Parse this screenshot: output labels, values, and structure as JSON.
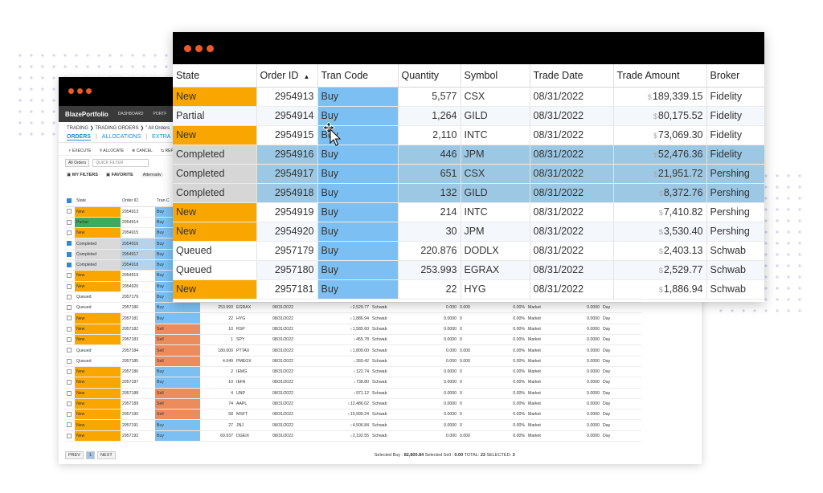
{
  "back_window": {
    "brand": "BlazePortfolio",
    "nav": [
      "DASHBOARD",
      "PORTF"
    ],
    "breadcrumb": "TRADING ❯ TRADING ORDERS ❯ \" All Orders",
    "subtabs": [
      "ORDERS",
      "ALLOCATIONS",
      "EXTRA"
    ],
    "actions": [
      "⚡ EXECUTE",
      "⚲ ALLOCATE",
      "⊗ CANCEL",
      "⇆ REP"
    ],
    "orders_filter": "All Orders",
    "quick_filter_placeholder": "QUICK FILTER",
    "my_filters": "MY FILTERS",
    "favorite": "FAVORITE",
    "alternative": "Alternativ",
    "columns": [
      "State",
      "Order ID",
      "Tran C"
    ],
    "rows": [
      {
        "state": "New",
        "id": "2954913",
        "code": "Buy",
        "checked": false
      },
      {
        "state": "Partial",
        "id": "2954914",
        "code": "Buy",
        "checked": false
      },
      {
        "state": "New",
        "id": "2954915",
        "code": "Buy",
        "checked": false
      },
      {
        "state": "Completed",
        "id": "2954916",
        "code": "Buy",
        "checked": true
      },
      {
        "state": "Completed",
        "id": "2954917",
        "code": "Buy",
        "checked": true
      },
      {
        "state": "Completed",
        "id": "2954918",
        "code": "Buy",
        "checked": true
      },
      {
        "state": "New",
        "id": "2954919",
        "code": "Buy",
        "checked": false
      },
      {
        "state": "New",
        "id": "2954920",
        "code": "Buy",
        "checked": false
      },
      {
        "state": "Queued",
        "id": "2957179",
        "code": "Buy",
        "checked": false
      },
      {
        "state": "Queued",
        "id": "2957180",
        "code": "Buy",
        "qty": "253.993",
        "sym": "EGRAX",
        "date": "08/31/2022",
        "amt": "2,529.77",
        "broker": "Schwab",
        "a": "0.000",
        "b": "0.000",
        "p": "0.00",
        "type": "Market",
        "lim": "0.0000",
        "tif": "Day",
        "checked": false
      },
      {
        "state": "New",
        "id": "2957181",
        "code": "Buy",
        "qty": "22",
        "sym": "HYG",
        "date": "08/31/2022",
        "amt": "1,886.94",
        "broker": "Schwab",
        "a": "0.0000",
        "b": "0",
        "p": "0.00",
        "type": "Market",
        "lim": "0.0000",
        "tif": "Day",
        "checked": false
      },
      {
        "state": "New",
        "id": "2957182",
        "code": "Sell",
        "qty": "10",
        "sym": "RSP",
        "date": "08/31/2022",
        "amt": "1,585.60",
        "broker": "Schwab",
        "a": "0.0000",
        "b": "0",
        "p": "0.00",
        "type": "Market",
        "lim": "0.0000",
        "tif": "Day",
        "checked": false
      },
      {
        "state": "New",
        "id": "2957183",
        "code": "Sell",
        "qty": "1",
        "sym": "SPY",
        "date": "08/31/2022",
        "amt": "455.78",
        "broker": "Schwab",
        "a": "0.0000",
        "b": "0",
        "p": "0.00",
        "type": "Market",
        "lim": "0.0000",
        "tif": "Day",
        "checked": false
      },
      {
        "state": "Queued",
        "id": "2957184",
        "code": "Sell",
        "qty": "180.000",
        "sym": "PTTAX",
        "date": "08/31/2022",
        "amt": "1,809.00",
        "broker": "Schwab",
        "a": "0.000",
        "b": "0.000",
        "p": "0.00",
        "type": "Market",
        "lim": "0.0000",
        "tif": "Day",
        "checked": false
      },
      {
        "state": "Queued",
        "id": "2957185",
        "code": "Sell",
        "qty": "4.049",
        "sym": "PMEGX",
        "date": "08/31/2022",
        "amt": "269.42",
        "broker": "Schwab",
        "a": "0.000",
        "b": "0.000",
        "p": "0.00",
        "type": "Market",
        "lim": "0.0000",
        "tif": "Day",
        "checked": false
      },
      {
        "state": "New",
        "id": "2957186",
        "code": "Buy",
        "qty": "2",
        "sym": "IEMG",
        "date": "08/31/2022",
        "amt": "122.74",
        "broker": "Schwab",
        "a": "0.0000",
        "b": "0",
        "p": "0.00",
        "type": "Market",
        "lim": "0.0000",
        "tif": "Day",
        "checked": false
      },
      {
        "state": "New",
        "id": "2957187",
        "code": "Buy",
        "qty": "10",
        "sym": "IEFA",
        "date": "08/31/2022",
        "amt": "738.80",
        "broker": "Schwab",
        "a": "0.0000",
        "b": "0",
        "p": "0.00",
        "type": "Market",
        "lim": "0.0000",
        "tif": "Day",
        "checked": false
      },
      {
        "state": "New",
        "id": "2957188",
        "code": "Sell",
        "qty": "4",
        "sym": "UNP",
        "date": "08/31/2022",
        "amt": "971.12",
        "broker": "Schwab",
        "a": "0.0000",
        "b": "0",
        "p": "0.00",
        "type": "Market",
        "lim": "0.0000",
        "tif": "Day",
        "checked": false
      },
      {
        "state": "New",
        "id": "2957189",
        "code": "Sell",
        "qty": "74",
        "sym": "AAPL",
        "date": "08/31/2022",
        "amt": "12,486.02",
        "broker": "Schwab",
        "a": "0.0000",
        "b": "0",
        "p": "0.00",
        "type": "Market",
        "lim": "0.0000",
        "tif": "Day",
        "checked": false
      },
      {
        "state": "New",
        "id": "2957190",
        "code": "Sell",
        "qty": "58",
        "sym": "MSFT",
        "date": "08/31/2022",
        "amt": "15,995.24",
        "broker": "Schwab",
        "a": "0.0000",
        "b": "0",
        "p": "0.00",
        "type": "Market",
        "lim": "0.0000",
        "tif": "Day",
        "checked": false
      },
      {
        "state": "New",
        "id": "2957191",
        "code": "Buy",
        "qty": "27",
        "sym": "JNJ",
        "date": "08/31/2022",
        "amt": "4,506.84",
        "broker": "Schwab",
        "a": "0.0000",
        "b": "0",
        "p": "0.00",
        "type": "Market",
        "lim": "0.0000",
        "tif": "Day",
        "checked": false
      },
      {
        "state": "New",
        "id": "2957192",
        "code": "Buy",
        "qty": "69.937",
        "sym": "DGEIX",
        "date": "08/31/2022",
        "amt": "2,192.55",
        "broker": "Schwab",
        "a": "0.000",
        "b": "0.000",
        "p": "0.00",
        "type": "Market",
        "lim": "0.0000",
        "tif": "Day",
        "checked": false
      }
    ],
    "pager": [
      "PREV",
      "1",
      "NEXT"
    ],
    "summary": {
      "selected_buy_label": "Selected Buy :",
      "selected_buy": "82,800.84",
      "selected_sell_label": "Selected Sell :",
      "selected_sell": "0.00",
      "total_label": "TOTAL:",
      "total": "23",
      "selected_label": "SELECTED:",
      "selected": "3"
    }
  },
  "front_window": {
    "columns": [
      "State",
      "Order ID",
      "Tran Code",
      "Quantity",
      "Symbol",
      "Trade Date",
      "Trade Amount",
      "Broker"
    ],
    "currency_symbol": "$",
    "rows": [
      {
        "state": "New",
        "id": "2954913",
        "code": "Buy",
        "qty": "5,577",
        "sym": "CSX",
        "date": "08/31/2022",
        "amt": "189,339.15",
        "broker": "Fidelity",
        "selected": false
      },
      {
        "state": "Partial",
        "id": "2954914",
        "code": "Buy",
        "qty": "1,264",
        "sym": "GILD",
        "date": "08/31/2022",
        "amt": "80,175.52",
        "broker": "Fidelity",
        "selected": false
      },
      {
        "state": "New",
        "id": "2954915",
        "code": "Buy",
        "qty": "2,110",
        "sym": "INTC",
        "date": "08/31/2022",
        "amt": "73,069.30",
        "broker": "Fidelity",
        "selected": false
      },
      {
        "state": "Completed",
        "id": "2954916",
        "code": "Buy",
        "qty": "446",
        "sym": "JPM",
        "date": "08/31/2022",
        "amt": "52,476.36",
        "broker": "Fidelity",
        "selected": true
      },
      {
        "state": "Completed",
        "id": "2954917",
        "code": "Buy",
        "qty": "651",
        "sym": "CSX",
        "date": "08/31/2022",
        "amt": "21,951.72",
        "broker": "Pershing",
        "selected": true
      },
      {
        "state": "Completed",
        "id": "2954918",
        "code": "Buy",
        "qty": "132",
        "sym": "GILD",
        "date": "08/31/2022",
        "amt": "8,372.76",
        "broker": "Pershing",
        "selected": true
      },
      {
        "state": "New",
        "id": "2954919",
        "code": "Buy",
        "qty": "214",
        "sym": "INTC",
        "date": "08/31/2022",
        "amt": "7,410.82",
        "broker": "Pershing",
        "selected": false
      },
      {
        "state": "New",
        "id": "2954920",
        "code": "Buy",
        "qty": "30",
        "sym": "JPM",
        "date": "08/31/2022",
        "amt": "3,530.40",
        "broker": "Pershing",
        "selected": false
      },
      {
        "state": "Queued",
        "id": "2957179",
        "code": "Buy",
        "qty": "220.876",
        "sym": "DODLX",
        "date": "08/31/2022",
        "amt": "2,403.13",
        "broker": "Schwab",
        "selected": false
      },
      {
        "state": "Queued",
        "id": "2957180",
        "code": "Buy",
        "qty": "253.993",
        "sym": "EGRAX",
        "date": "08/31/2022",
        "amt": "2,529.77",
        "broker": "Schwab",
        "selected": false
      },
      {
        "state": "New",
        "id": "2957181",
        "code": "Buy",
        "qty": "22",
        "sym": "HYG",
        "date": "08/31/2022",
        "amt": "1,886.94",
        "broker": "Schwab",
        "selected": false
      }
    ]
  },
  "colors": {
    "state_new": "#f9a600",
    "state_partial": "#3eaa5f",
    "state_completed": "#d9d9d9",
    "tran_buy": "#7cc0f3",
    "tran_sell": "#ec8b5c",
    "selected_row": "#9cc8e4",
    "window_dot": "#f05a28"
  }
}
